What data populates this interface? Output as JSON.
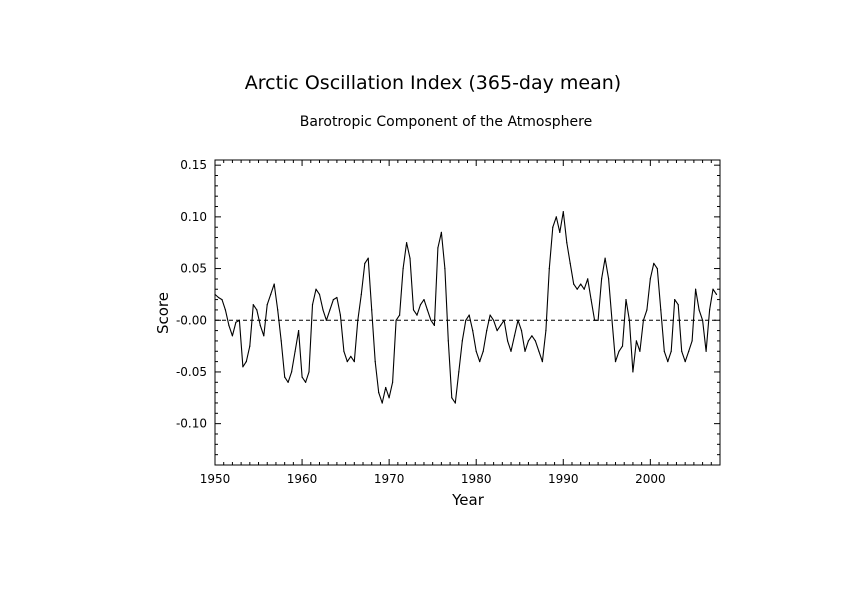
{
  "chart_data": {
    "type": "line",
    "title": "Arctic Oscillation Index (365-day mean)",
    "subtitle": "Barotropic Component of the Atmosphere",
    "xlabel": "Year",
    "ylabel": "Score",
    "xlim": [
      1950,
      2008
    ],
    "ylim": [
      -0.14,
      0.155
    ],
    "x_ticks": [
      1950,
      1960,
      1970,
      1980,
      1990,
      2000
    ],
    "x_tick_labels": [
      "1950",
      "1960",
      "1970",
      "1980",
      "1990",
      "2000"
    ],
    "y_ticks": [
      -0.1,
      -0.05,
      0.0,
      0.05,
      0.1,
      0.15
    ],
    "y_tick_labels": [
      "-0.10",
      "-0.05",
      "-0.00",
      "0.05",
      "0.10",
      "0.15"
    ],
    "reference_line": {
      "y": 0.0,
      "style": "dashed"
    },
    "grid": false,
    "legend": "none",
    "line_color": "#000000",
    "x": [
      1950.0,
      1950.4,
      1950.8,
      1951.2,
      1951.6,
      1952.0,
      1952.4,
      1952.8,
      1953.2,
      1953.6,
      1954.0,
      1954.4,
      1954.8,
      1955.2,
      1955.6,
      1956.0,
      1956.4,
      1956.8,
      1957.2,
      1957.6,
      1958.0,
      1958.4,
      1958.8,
      1959.2,
      1959.6,
      1960.0,
      1960.4,
      1960.8,
      1961.2,
      1961.6,
      1962.0,
      1962.4,
      1962.8,
      1963.2,
      1963.6,
      1964.0,
      1964.4,
      1964.8,
      1965.2,
      1965.6,
      1966.0,
      1966.4,
      1966.8,
      1967.2,
      1967.6,
      1968.0,
      1968.4,
      1968.8,
      1969.2,
      1969.6,
      1970.0,
      1970.4,
      1970.8,
      1971.2,
      1971.6,
      1972.0,
      1972.4,
      1972.8,
      1973.2,
      1973.6,
      1974.0,
      1974.4,
      1974.8,
      1975.2,
      1975.6,
      1976.0,
      1976.4,
      1976.8,
      1977.2,
      1977.6,
      1978.0,
      1978.4,
      1978.8,
      1979.2,
      1979.6,
      1980.0,
      1980.4,
      1980.8,
      1981.2,
      1981.6,
      1982.0,
      1982.4,
      1982.8,
      1983.2,
      1983.6,
      1984.0,
      1984.4,
      1984.8,
      1985.2,
      1985.6,
      1986.0,
      1986.4,
      1986.8,
      1987.2,
      1987.6,
      1988.0,
      1988.4,
      1988.8,
      1989.2,
      1989.6,
      1990.0,
      1990.4,
      1990.8,
      1991.2,
      1991.6,
      1992.0,
      1992.4,
      1992.8,
      1993.2,
      1993.6,
      1994.0,
      1994.4,
      1994.8,
      1995.2,
      1995.6,
      1996.0,
      1996.4,
      1996.8,
      1997.2,
      1997.6,
      1998.0,
      1998.4,
      1998.8,
      1999.2,
      1999.6,
      2000.0,
      2000.4,
      2000.8,
      2001.2,
      2001.6,
      2002.0,
      2002.4,
      2002.8,
      2003.2,
      2003.6,
      2004.0,
      2004.4,
      2004.8,
      2005.2,
      2005.6,
      2006.0,
      2006.4,
      2006.8,
      2007.2,
      2007.6
    ],
    "values": [
      0.025,
      0.022,
      0.02,
      0.01,
      -0.005,
      -0.015,
      -0.002,
      0.0,
      -0.045,
      -0.04,
      -0.025,
      0.015,
      0.01,
      -0.005,
      -0.015,
      0.015,
      0.025,
      0.035,
      0.01,
      -0.02,
      -0.055,
      -0.06,
      -0.05,
      -0.03,
      -0.01,
      -0.055,
      -0.06,
      -0.05,
      0.015,
      0.03,
      0.025,
      0.01,
      0.0,
      0.01,
      0.02,
      0.022,
      0.005,
      -0.03,
      -0.04,
      -0.035,
      -0.04,
      0.0,
      0.025,
      0.055,
      0.06,
      0.01,
      -0.04,
      -0.07,
      -0.08,
      -0.065,
      -0.075,
      -0.06,
      0.0,
      0.005,
      0.05,
      0.075,
      0.06,
      0.01,
      0.005,
      0.015,
      0.02,
      0.01,
      0.0,
      -0.005,
      0.07,
      0.085,
      0.05,
      -0.02,
      -0.075,
      -0.08,
      -0.05,
      -0.02,
      0.0,
      0.005,
      -0.01,
      -0.03,
      -0.04,
      -0.03,
      -0.01,
      0.005,
      0.0,
      -0.01,
      -0.005,
      0.0,
      -0.02,
      -0.03,
      -0.015,
      0.0,
      -0.01,
      -0.03,
      -0.02,
      -0.015,
      -0.02,
      -0.03,
      -0.04,
      -0.01,
      0.05,
      0.09,
      0.1,
      0.085,
      0.105,
      0.075,
      0.055,
      0.035,
      0.03,
      0.035,
      0.03,
      0.04,
      0.02,
      0.0,
      0.0,
      0.04,
      0.06,
      0.04,
      0.0,
      -0.04,
      -0.03,
      -0.025,
      0.02,
      0.0,
      -0.05,
      -0.02,
      -0.03,
      0.0,
      0.01,
      0.04,
      0.055,
      0.05,
      0.01,
      -0.03,
      -0.04,
      -0.03,
      0.02,
      0.015,
      -0.03,
      -0.04,
      -0.03,
      -0.02,
      0.03,
      0.01,
      0.0,
      -0.03,
      0.01,
      0.03,
      0.025
    ]
  }
}
